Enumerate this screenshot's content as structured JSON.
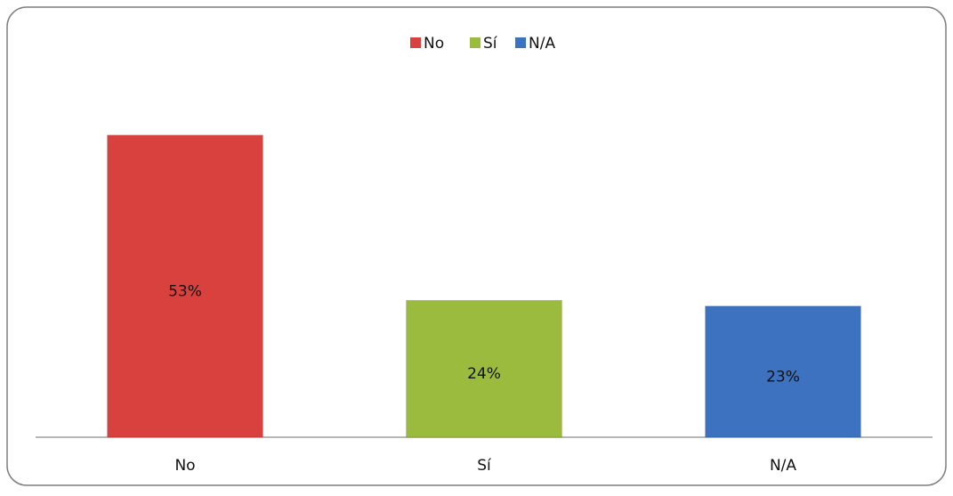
{
  "chart_data": {
    "type": "bar",
    "categories": [
      "No",
      "Sí",
      "N/A"
    ],
    "values": [
      53,
      24,
      23
    ],
    "value_labels": [
      "53%",
      "24%",
      "23%"
    ],
    "colors": [
      "#d9413e",
      "#9bbb3e",
      "#3d72c1"
    ],
    "ylim": [
      0,
      60
    ],
    "legend": "top"
  }
}
